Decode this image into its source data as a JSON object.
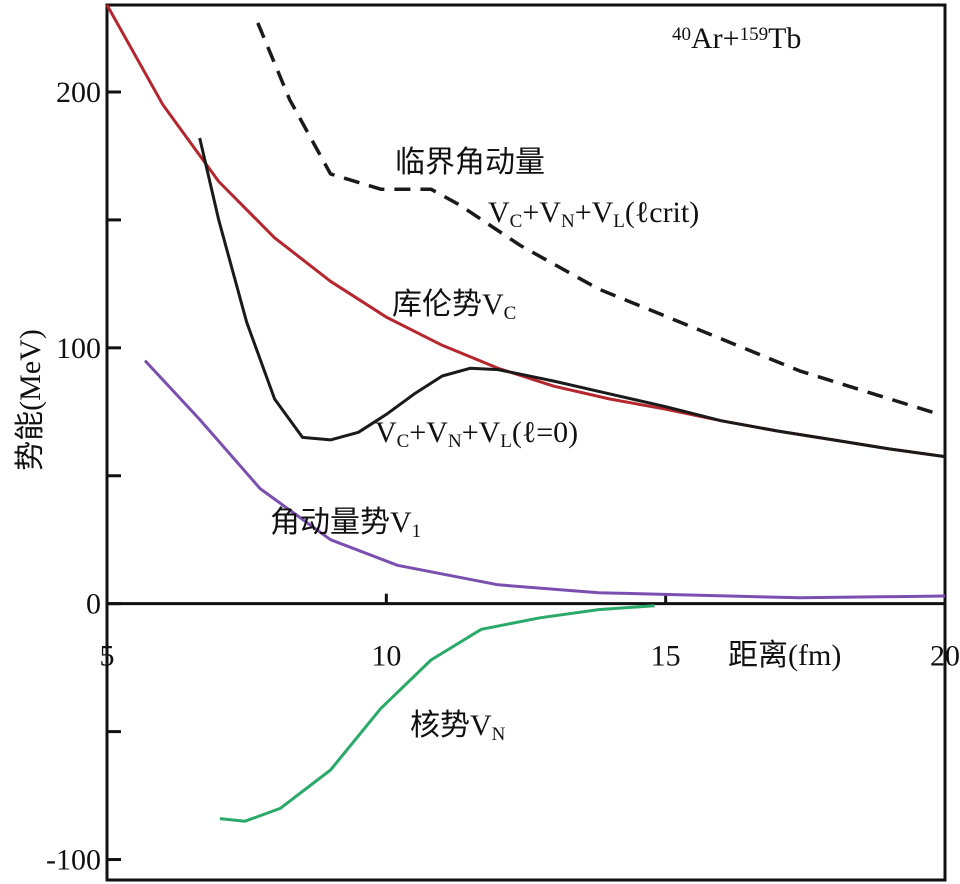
{
  "chart_data": {
    "type": "line",
    "xlabel": "距离(fm)",
    "ylabel": "势能(MeV)",
    "xlim": [
      5,
      20
    ],
    "ylim": [
      -108,
      234
    ],
    "xticks": [
      5,
      10,
      15,
      20
    ],
    "yticks": [
      -100,
      0,
      100,
      200
    ],
    "yminor_ticks": [
      -50,
      50,
      150
    ],
    "series": [
      {
        "color": "#b5262e",
        "dash": false,
        "x": [
          5,
          6,
          7,
          8,
          9,
          10,
          11,
          12,
          13,
          14,
          15,
          16,
          17,
          18,
          19,
          20
        ],
        "y": [
          234,
          195,
          165,
          143,
          126,
          112,
          101,
          92,
          85,
          80,
          76,
          71.5,
          67.5,
          64,
          60.5,
          57.5
        ]
      },
      {
        "color": "#1a1a1a",
        "dash": false,
        "x": [
          6.66,
          7,
          7.5,
          8,
          8.5,
          9,
          9.5,
          10,
          10.5,
          11,
          11.5,
          12,
          13,
          14,
          15,
          16,
          17,
          18,
          19,
          20
        ],
        "y": [
          182,
          150,
          110,
          80,
          65,
          64,
          67,
          74,
          82,
          89,
          92,
          91.5,
          87,
          82,
          77,
          71.5,
          67.5,
          64,
          60.5,
          57.5
        ]
      },
      {
        "color": "#1a1a1a",
        "dash": true,
        "x": [
          7.7,
          8.27,
          9.0,
          9.9,
          10.8,
          11.3,
          12.4,
          13.8,
          15.6,
          17.4,
          19.9
        ],
        "y": [
          227,
          197,
          168,
          162,
          162,
          156,
          140,
          123,
          107,
          91,
          74
        ]
      },
      {
        "color": "#7b4fb0",
        "dash": false,
        "x": [
          5.68,
          6.66,
          7.74,
          9,
          10.2,
          12,
          13.8,
          17.4,
          20
        ],
        "y": [
          95,
          72,
          45,
          25,
          15,
          7.4,
          4.3,
          2.3,
          3
        ]
      },
      {
        "color": "#2aaa6a",
        "dash": false,
        "x": [
          7.02,
          7.47,
          8.1,
          9,
          9.9,
          10.8,
          11.7,
          12.75,
          13.8,
          14.8
        ],
        "y": [
          -84,
          -85,
          -80,
          -65,
          -41,
          -22,
          -10,
          -5.5,
          -2.3,
          -0.8
        ]
      }
    ],
    "annotations": [
      {
        "segments": [
          {
            "text": "40",
            "pos": "sup"
          },
          {
            "text": "Ar+"
          },
          {
            "text": "159",
            "pos": "sup"
          },
          {
            "text": "Tb"
          }
        ]
      },
      {
        "segments": [
          {
            "text": "临界角动量"
          }
        ]
      },
      {
        "segments": [
          {
            "text": "V"
          },
          {
            "text": "C",
            "pos": "sub"
          },
          {
            "text": "+V"
          },
          {
            "text": "N",
            "pos": "sub"
          },
          {
            "text": "+V"
          },
          {
            "text": "L",
            "pos": "sub"
          },
          {
            "text": "(ℓcrit)"
          }
        ]
      },
      {
        "segments": [
          {
            "text": "库伦势V"
          },
          {
            "text": "C",
            "pos": "sub"
          }
        ]
      },
      {
        "segments": [
          {
            "text": "V"
          },
          {
            "text": "C",
            "pos": "sub"
          },
          {
            "text": "+V"
          },
          {
            "text": "N",
            "pos": "sub"
          },
          {
            "text": "+V"
          },
          {
            "text": "L",
            "pos": "sub"
          },
          {
            "text": "(ℓ=0)"
          }
        ]
      },
      {
        "segments": [
          {
            "text": "角动量势V"
          },
          {
            "text": "1",
            "pos": "sub"
          }
        ]
      },
      {
        "segments": [
          {
            "text": "核势V"
          },
          {
            "text": "N",
            "pos": "sub"
          }
        ]
      }
    ]
  }
}
